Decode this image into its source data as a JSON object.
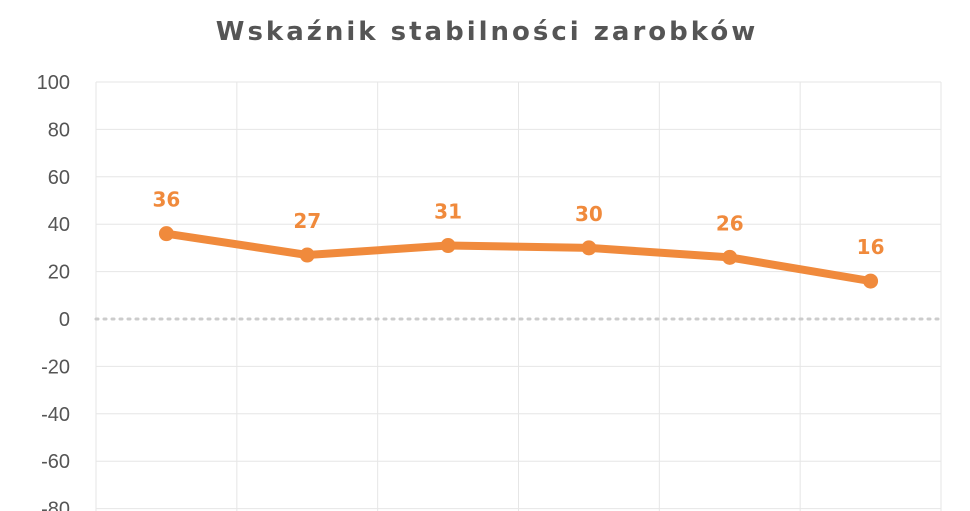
{
  "chart_data": {
    "type": "line",
    "title": "Wskaźnik stabilności zarobków",
    "xlabel": "",
    "ylabel": "",
    "ylim": [
      -80,
      100
    ],
    "y_ticks": [
      100,
      80,
      60,
      40,
      20,
      0,
      -20,
      -40,
      -60,
      -80
    ],
    "y_tick_labels": [
      "100",
      "80",
      "60",
      "40",
      "20",
      "0",
      "-20",
      "-40",
      "-60",
      "-80"
    ],
    "categories": [
      "",
      "",
      "",
      "",
      "",
      ""
    ],
    "series": [
      {
        "values": [
          36,
          27,
          31,
          30,
          26,
          16
        ],
        "color": "#f08a3c"
      }
    ],
    "zero_line": "dotted",
    "grid": true,
    "legend": "none"
  }
}
